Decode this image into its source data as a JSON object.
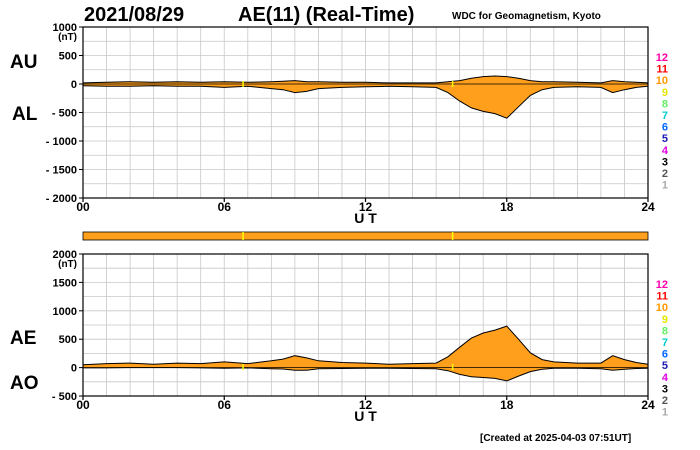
{
  "header": {
    "date": "2021/08/29",
    "title": "AE(11) (Real-Time)",
    "organization": "WDC for Geomagnetism, Kyoto",
    "created": "[Created at 2025-04-03 07:51UT]"
  },
  "colors": {
    "fill": "#ff9f1c",
    "line": "#000000",
    "grid": "#c8c8c8",
    "marker": "#ffff00",
    "legend": [
      "#aaaaaa",
      "#555555",
      "#000000",
      "#e600e6",
      "#1a1ab3",
      "#0066ff",
      "#00cccc",
      "#66ee66",
      "#e6e600",
      "#ff9900",
      "#ff0000",
      "#ff00aa"
    ]
  },
  "legend_numbers": [
    "1",
    "2",
    "3",
    "4",
    "5",
    "6",
    "7",
    "8",
    "9",
    "10",
    "11",
    "12"
  ],
  "top_panel": {
    "labels": {
      "upper": "AU",
      "lower": "AL"
    },
    "unit": "(nT)"
  },
  "bottom_panel": {
    "labels": {
      "upper": "AE",
      "lower": "AO"
    },
    "unit": "(nT)"
  },
  "chart_data": [
    {
      "type": "area",
      "name": "AU/AL",
      "xlabel": "U T",
      "ylabel": "(nT)",
      "xlim": [
        0,
        24
      ],
      "ylim": [
        -2000,
        1000
      ],
      "xticks": [
        0,
        6,
        12,
        18,
        24
      ],
      "xtick_labels": [
        "00",
        "06",
        "12",
        "18",
        "24"
      ],
      "yticks": [
        1000,
        500,
        0,
        -500,
        -1000,
        -1500,
        -2000
      ],
      "ytick_labels": [
        "1000",
        "500",
        "0",
        "- 500",
        "- 1000",
        "- 1500",
        "- 2000"
      ],
      "grid": true,
      "x": [
        0,
        1,
        2,
        3,
        4,
        5,
        6,
        7,
        8,
        8.5,
        9,
        9.5,
        10,
        11,
        12,
        13,
        14,
        15,
        15.5,
        16,
        16.5,
        17,
        17.5,
        18,
        18.5,
        19,
        19.5,
        20,
        21,
        22,
        22.5,
        23,
        23.5,
        24
      ],
      "series": [
        {
          "name": "AU",
          "values": [
            20,
            30,
            40,
            30,
            40,
            30,
            40,
            30,
            40,
            50,
            60,
            40,
            40,
            30,
            30,
            20,
            20,
            20,
            40,
            60,
            100,
            130,
            140,
            130,
            100,
            60,
            40,
            40,
            30,
            20,
            60,
            40,
            30,
            20
          ]
        },
        {
          "name": "AL",
          "values": [
            -30,
            -40,
            -40,
            -30,
            -40,
            -40,
            -60,
            -40,
            -80,
            -100,
            -150,
            -130,
            -80,
            -60,
            -50,
            -40,
            -50,
            -60,
            -150,
            -300,
            -420,
            -480,
            -520,
            -600,
            -400,
            -200,
            -100,
            -60,
            -50,
            -60,
            -150,
            -100,
            -60,
            -40
          ]
        }
      ]
    },
    {
      "type": "area",
      "name": "AE/AO",
      "xlabel": "U T",
      "ylabel": "(nT)",
      "xlim": [
        0,
        24
      ],
      "ylim": [
        -500,
        2000
      ],
      "xticks": [
        0,
        6,
        12,
        18,
        24
      ],
      "xtick_labels": [
        "00",
        "06",
        "12",
        "18",
        "24"
      ],
      "yticks": [
        2000,
        1500,
        1000,
        500,
        0,
        -500
      ],
      "ytick_labels": [
        "2000",
        "1500",
        "1000",
        "500",
        "0",
        "- 500"
      ],
      "grid": true,
      "x": [
        0,
        1,
        2,
        3,
        4,
        5,
        6,
        7,
        8,
        8.5,
        9,
        9.5,
        10,
        11,
        12,
        13,
        14,
        15,
        15.5,
        16,
        16.5,
        17,
        17.5,
        18,
        18.5,
        19,
        19.5,
        20,
        21,
        22,
        22.5,
        23,
        23.5,
        24
      ],
      "series": [
        {
          "name": "AE",
          "values": [
            50,
            70,
            80,
            60,
            80,
            70,
            100,
            70,
            120,
            150,
            210,
            170,
            120,
            90,
            80,
            60,
            70,
            80,
            190,
            360,
            520,
            610,
            660,
            730,
            500,
            260,
            140,
            100,
            80,
            80,
            210,
            140,
            90,
            60
          ]
        },
        {
          "name": "AO",
          "values": [
            -5,
            -5,
            0,
            0,
            0,
            -5,
            -10,
            -5,
            -20,
            -25,
            -45,
            -45,
            -20,
            -15,
            -10,
            -10,
            -15,
            -20,
            -55,
            -120,
            -160,
            -175,
            -190,
            -235,
            -150,
            -70,
            -30,
            -10,
            -10,
            -20,
            -45,
            -30,
            -15,
            -10
          ]
        }
      ]
    }
  ]
}
